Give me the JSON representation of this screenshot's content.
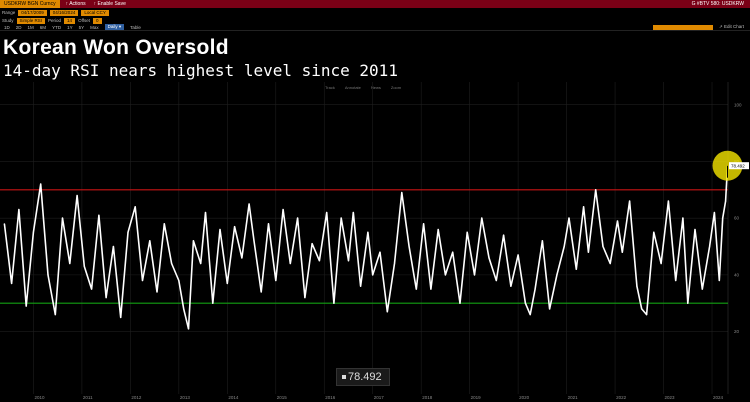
{
  "header": {
    "ticker": "USDKRW BGN Curncy",
    "actions": "↑ Actions",
    "save": "↑ Enable Save",
    "right": "G #BTV 580: USDKRW"
  },
  "row2": {
    "label": "Range",
    "field1": "04/17/2009",
    "field2": "04/16/2024",
    "last": "Local CCY"
  },
  "row3": {
    "study_label": "Study",
    "study_value": "Simple RSI",
    "period_label": "Period",
    "period_value": "14",
    "offset_label": "Offset",
    "offset_value": "0"
  },
  "toolbar": {
    "periods": [
      "1D",
      "2D",
      "1M",
      "6M",
      "YTD",
      "1Y",
      "5Y",
      "Max"
    ],
    "daily": "Daily ▾",
    "table": "Table",
    "edit_chart": "↗ Edit Chart"
  },
  "title": "Korean Won Oversold",
  "subtitle": "14-day RSI nears highest level since 2011",
  "controls": [
    "Track",
    "Annotate",
    "News",
    "Zoom"
  ],
  "readout": "78.492",
  "colors": {
    "overbought_line": "#c81414",
    "oversold_line": "#12a012",
    "highlight": "#f0e000",
    "series": "#ffffff"
  },
  "chart_data": {
    "type": "line",
    "title": "Korean Won Oversold",
    "subtitle": "14-day RSI nears highest level since 2011",
    "xlabel": "",
    "ylabel": "",
    "x_ticks": [
      "2010",
      "2011",
      "2012",
      "2013",
      "2014",
      "2015",
      "2016",
      "2017",
      "2018",
      "2019",
      "2020",
      "2021",
      "2022",
      "2023",
      "2024"
    ],
    "y_ticks": [
      20,
      40,
      60,
      80,
      100
    ],
    "ylim": [
      -2,
      108
    ],
    "xlim": [
      2009.31,
      2024.33
    ],
    "overbought": 70,
    "oversold": 30,
    "last_value": 78.492,
    "grid": true,
    "series": [
      {
        "values": [
          [
            2009.4,
            58
          ],
          [
            2009.55,
            37
          ],
          [
            2009.7,
            63
          ],
          [
            2009.85,
            29
          ],
          [
            2010.0,
            55
          ],
          [
            2010.15,
            72
          ],
          [
            2010.3,
            40
          ],
          [
            2010.45,
            26
          ],
          [
            2010.6,
            60
          ],
          [
            2010.75,
            44
          ],
          [
            2010.9,
            68
          ],
          [
            2011.05,
            43
          ],
          [
            2011.2,
            35
          ],
          [
            2011.35,
            61
          ],
          [
            2011.5,
            32
          ],
          [
            2011.65,
            50
          ],
          [
            2011.8,
            25
          ],
          [
            2011.95,
            55
          ],
          [
            2012.1,
            64
          ],
          [
            2012.25,
            38
          ],
          [
            2012.4,
            52
          ],
          [
            2012.55,
            34
          ],
          [
            2012.7,
            58
          ],
          [
            2012.85,
            44
          ],
          [
            2013.0,
            38
          ],
          [
            2013.1,
            28
          ],
          [
            2013.2,
            21
          ],
          [
            2013.3,
            52
          ],
          [
            2013.45,
            44
          ],
          [
            2013.55,
            62
          ],
          [
            2013.7,
            30
          ],
          [
            2013.85,
            56
          ],
          [
            2014.0,
            37
          ],
          [
            2014.15,
            57
          ],
          [
            2014.3,
            46
          ],
          [
            2014.45,
            65
          ],
          [
            2014.55,
            52
          ],
          [
            2014.7,
            34
          ],
          [
            2014.85,
            58
          ],
          [
            2015.0,
            38
          ],
          [
            2015.15,
            63
          ],
          [
            2015.3,
            44
          ],
          [
            2015.45,
            60
          ],
          [
            2015.6,
            32
          ],
          [
            2015.75,
            51
          ],
          [
            2015.9,
            45
          ],
          [
            2016.05,
            62
          ],
          [
            2016.2,
            30
          ],
          [
            2016.35,
            60
          ],
          [
            2016.5,
            45
          ],
          [
            2016.6,
            62
          ],
          [
            2016.75,
            36
          ],
          [
            2016.9,
            55
          ],
          [
            2017.0,
            40
          ],
          [
            2017.15,
            48
          ],
          [
            2017.3,
            27
          ],
          [
            2017.45,
            44
          ],
          [
            2017.6,
            69
          ],
          [
            2017.75,
            50
          ],
          [
            2017.9,
            35
          ],
          [
            2018.05,
            58
          ],
          [
            2018.2,
            35
          ],
          [
            2018.35,
            56
          ],
          [
            2018.5,
            40
          ],
          [
            2018.65,
            48
          ],
          [
            2018.8,
            30
          ],
          [
            2018.95,
            55
          ],
          [
            2019.1,
            40
          ],
          [
            2019.25,
            60
          ],
          [
            2019.4,
            46
          ],
          [
            2019.55,
            38
          ],
          [
            2019.7,
            54
          ],
          [
            2019.85,
            36
          ],
          [
            2020.0,
            47
          ],
          [
            2020.15,
            30
          ],
          [
            2020.25,
            26
          ],
          [
            2020.35,
            35
          ],
          [
            2020.5,
            52
          ],
          [
            2020.65,
            28
          ],
          [
            2020.8,
            40
          ],
          [
            2020.95,
            50
          ],
          [
            2021.05,
            60
          ],
          [
            2021.2,
            42
          ],
          [
            2021.35,
            64
          ],
          [
            2021.45,
            48
          ],
          [
            2021.6,
            70
          ],
          [
            2021.75,
            50
          ],
          [
            2021.9,
            44
          ],
          [
            2022.05,
            59
          ],
          [
            2022.15,
            48
          ],
          [
            2022.3,
            66
          ],
          [
            2022.45,
            36
          ],
          [
            2022.55,
            28
          ],
          [
            2022.65,
            26
          ],
          [
            2022.8,
            55
          ],
          [
            2022.95,
            44
          ],
          [
            2023.1,
            66
          ],
          [
            2023.25,
            38
          ],
          [
            2023.4,
            60
          ],
          [
            2023.5,
            30
          ],
          [
            2023.65,
            56
          ],
          [
            2023.8,
            35
          ],
          [
            2023.95,
            50
          ],
          [
            2024.05,
            62
          ],
          [
            2024.15,
            38
          ],
          [
            2024.22,
            60
          ],
          [
            2024.28,
            66
          ],
          [
            2024.32,
            78.492
          ]
        ]
      }
    ]
  }
}
